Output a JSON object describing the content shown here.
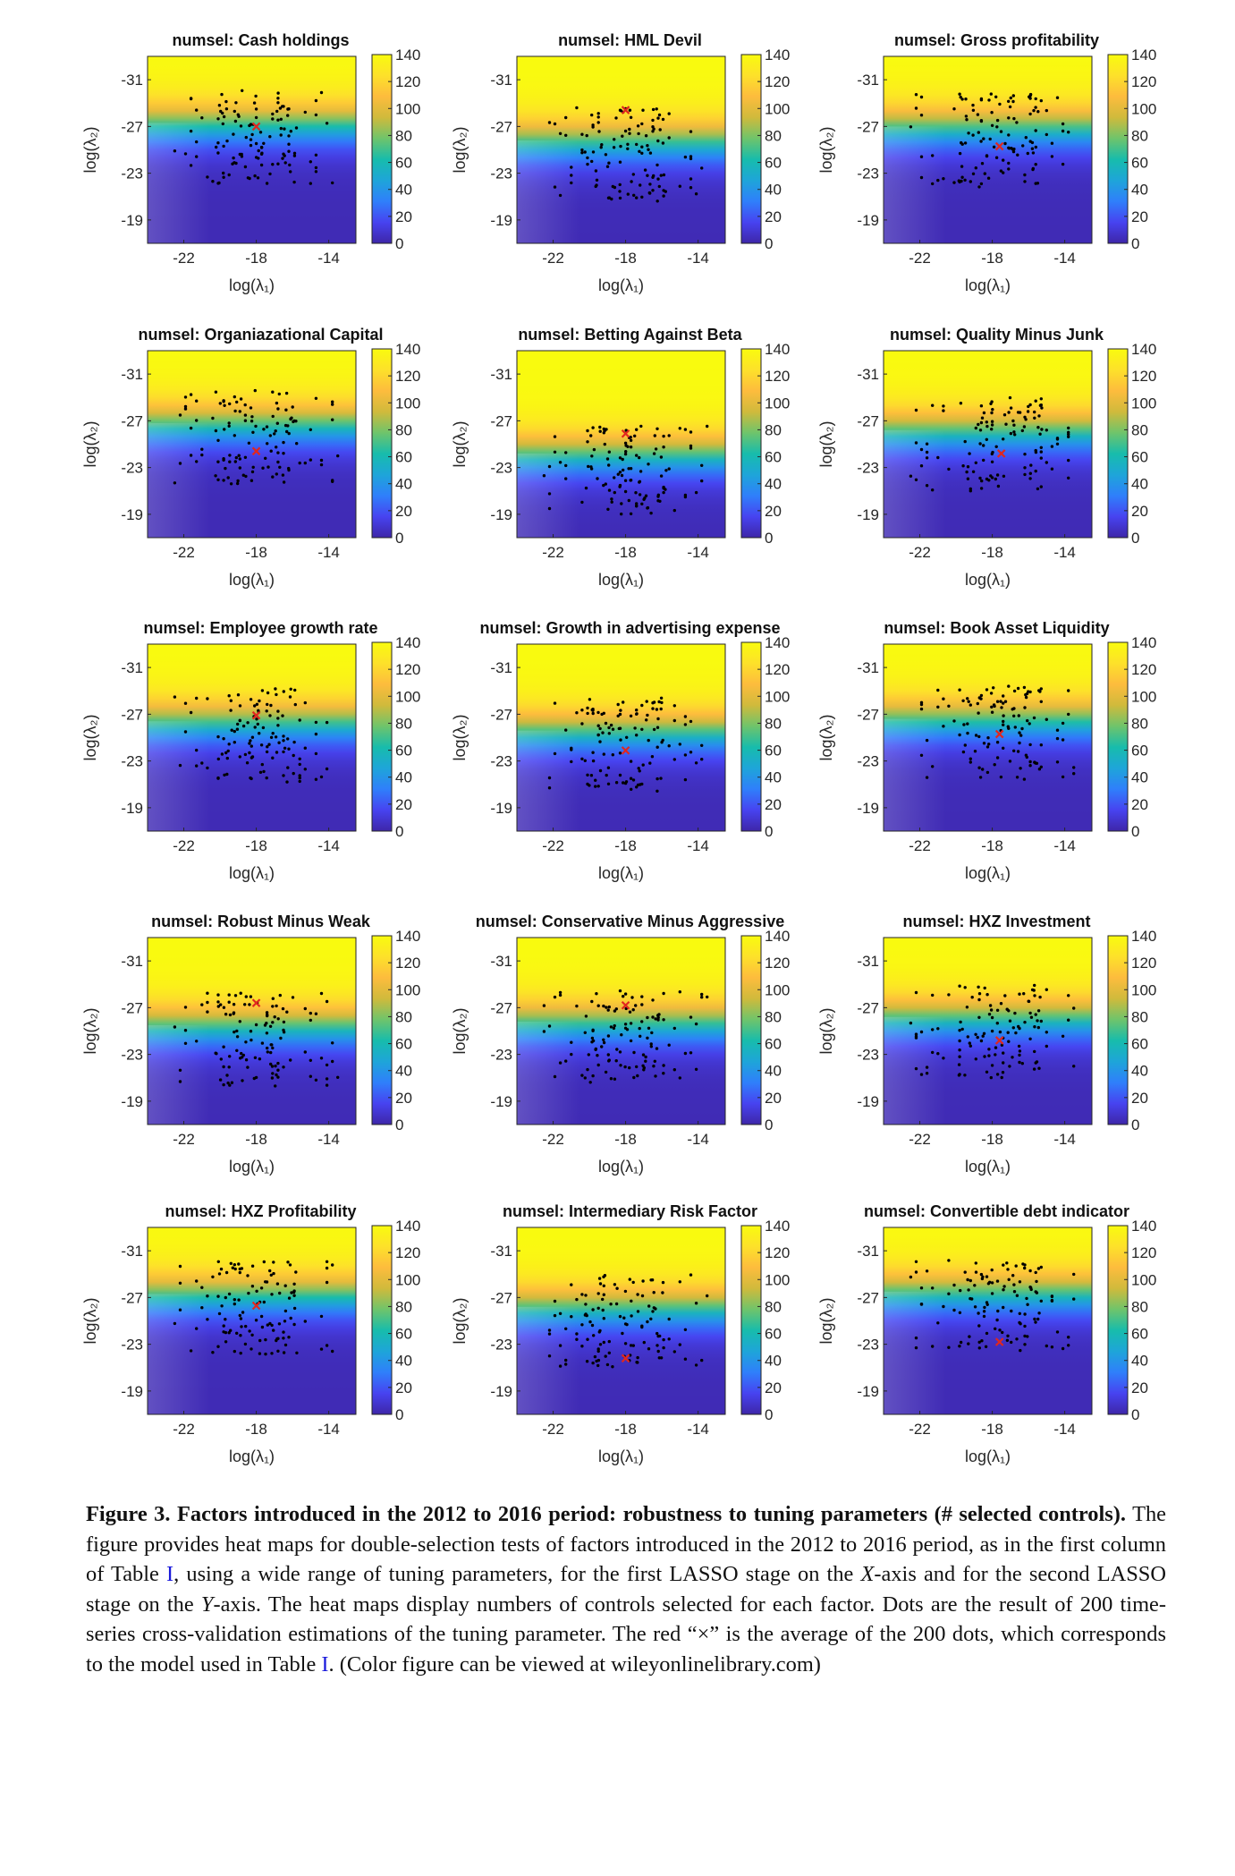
{
  "figure": {
    "colorbar_ticks": [
      "140",
      "120",
      "100",
      "80",
      "60",
      "40",
      "20",
      "0"
    ],
    "x_ticks": [
      "-22",
      "-18",
      "-14"
    ],
    "y_ticks": [
      "-31",
      "-27",
      "-23",
      "-19"
    ],
    "x_label": "log(λ₁)",
    "y_label": "log(λ₂)",
    "colors": {
      "colormap": [
        "#3e26a8",
        "#4743f0",
        "#2f7ffb",
        "#1ea5d9",
        "#17bcac",
        "#6fc46b",
        "#d0ba3c",
        "#fdbc3d",
        "#fde12a",
        "#f9fb0e"
      ],
      "dot": "#000000",
      "average_marker": "#e0271f"
    }
  },
  "chart_data": [
    {
      "type": "heatmap",
      "title": "numsel: Cash holdings",
      "xlim": [
        -24,
        -12.5
      ],
      "ylim": [
        -33,
        -17
      ],
      "transition_log_lambda2": -27.3,
      "average": {
        "x": -18,
        "y": -27
      }
    },
    {
      "type": "heatmap",
      "title": "numsel: HML Devil",
      "xlim": [
        -24,
        -12.5
      ],
      "ylim": [
        -33,
        -17
      ],
      "transition_log_lambda2": -25.8,
      "average": {
        "x": -18,
        "y": -28.4
      }
    },
    {
      "type": "heatmap",
      "title": "numsel: Gross profitability",
      "xlim": [
        -24,
        -12.5
      ],
      "ylim": [
        -33,
        -17
      ],
      "transition_log_lambda2": -27,
      "average": {
        "x": -17.6,
        "y": -25.3
      }
    },
    {
      "type": "heatmap",
      "title": "numsel: Organiazational Capital",
      "xlim": [
        -24,
        -12.5
      ],
      "ylim": [
        -33,
        -17
      ],
      "transition_log_lambda2": -26.8,
      "average": {
        "x": -18,
        "y": -24.4
      }
    },
    {
      "type": "heatmap",
      "title": "numsel: Betting Against Beta",
      "xlim": [
        -24,
        -12.5
      ],
      "ylim": [
        -33,
        -17
      ],
      "transition_log_lambda2": -24.2,
      "average": {
        "x": -18,
        "y": -25.9
      }
    },
    {
      "type": "heatmap",
      "title": "numsel: Quality Minus Junk",
      "xlim": [
        -24,
        -12.5
      ],
      "ylim": [
        -33,
        -17
      ],
      "transition_log_lambda2": -26.2,
      "average": {
        "x": -17.5,
        "y": -24.2
      }
    },
    {
      "type": "heatmap",
      "title": "numsel: Employee growth rate",
      "xlim": [
        -24,
        -12.5
      ],
      "ylim": [
        -33,
        -17
      ],
      "transition_log_lambda2": -26.4,
      "average": {
        "x": -18,
        "y": -26.9
      }
    },
    {
      "type": "heatmap",
      "title": "numsel: Growth in advertising expense",
      "xlim": [
        -24,
        -12.5
      ],
      "ylim": [
        -33,
        -17
      ],
      "transition_log_lambda2": -25.6,
      "average": {
        "x": -18,
        "y": -23.9
      }
    },
    {
      "type": "heatmap",
      "title": "numsel: Book Asset Liquidity",
      "xlim": [
        -24,
        -12.5
      ],
      "ylim": [
        -33,
        -17
      ],
      "transition_log_lambda2": -26.6,
      "average": {
        "x": -17.6,
        "y": -25.3
      }
    },
    {
      "type": "heatmap",
      "title": "numsel: Robust Minus Weak",
      "xlim": [
        -24,
        -12.5
      ],
      "ylim": [
        -33,
        -17
      ],
      "transition_log_lambda2": -25.5,
      "average": {
        "x": -18,
        "y": -27.4
      }
    },
    {
      "type": "heatmap",
      "title": "numsel: Conservative Minus Aggressive",
      "xlim": [
        -24,
        -12.5
      ],
      "ylim": [
        -33,
        -17
      ],
      "transition_log_lambda2": -25.8,
      "average": {
        "x": -18,
        "y": -27.2
      }
    },
    {
      "type": "heatmap",
      "title": "numsel: HXZ Investment",
      "xlim": [
        -24,
        -12.5
      ],
      "ylim": [
        -33,
        -17
      ],
      "transition_log_lambda2": -26.2,
      "average": {
        "x": -17.6,
        "y": -24.2
      }
    },
    {
      "type": "heatmap",
      "title": "numsel: HXZ Profitability",
      "xlim": [
        -24,
        -12.5
      ],
      "ylim": [
        -33,
        -17
      ],
      "transition_log_lambda2": -27.3,
      "average": {
        "x": -18,
        "y": -26.3
      }
    },
    {
      "type": "heatmap",
      "title": "numsel: Intermediary Risk Factor",
      "xlim": [
        -24,
        -12.5
      ],
      "ylim": [
        -33,
        -17
      ],
      "transition_log_lambda2": -26.2,
      "average": {
        "x": -18,
        "y": -21.8
      }
    },
    {
      "type": "heatmap",
      "title": "numsel: Convertible debt indicator",
      "xlim": [
        -24,
        -12.5
      ],
      "ylim": [
        -33,
        -17
      ],
      "transition_log_lambda2": -27.5,
      "average": {
        "x": -17.6,
        "y": -23.2
      }
    }
  ],
  "caption": {
    "label": "Figure 3.",
    "title": "Factors introduced in the 2012 to 2016 period: robustness to tuning parameters (# selected controls).",
    "text_1": "The figure provides heat maps for double-selection tests of factors introduced in the 2012 to 2016 period, as in the first column of Table",
    "ref_1": "I",
    "text_2": ", using a wide range of tuning parameters, for the first LASSO stage on the",
    "x_axis": "X",
    "text_3": "-axis and for the second LASSO stage on the",
    "y_axis": "Y",
    "text_4": "-axis. The heat maps display numbers of controls selected for each factor. Dots are the result of 200 time-series cross-validation estimations of the tuning parameter. The red “×” is the average of the 200 dots, which corresponds to the model used in Table",
    "ref_2": "I",
    "text_5": ". (Color figure can be viewed at wileyonlinelibrary.com)"
  }
}
